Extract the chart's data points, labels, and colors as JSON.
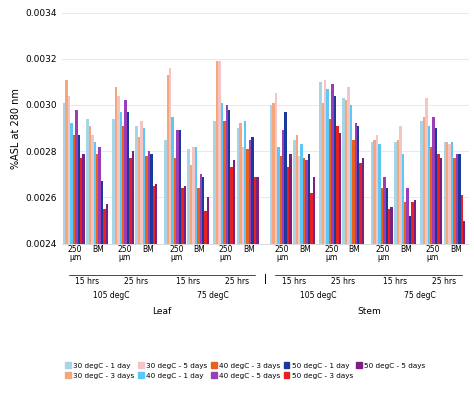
{
  "ylabel": "%ASL at 280 nm",
  "ylim": [
    0.0024,
    0.0034
  ],
  "yticks": [
    0.0024,
    0.0026,
    0.0028,
    0.003,
    0.0032,
    0.0034
  ],
  "series_labels": [
    "30 degC - 1 day",
    "30 degC - 3 days",
    "30 degC - 5 days",
    "40 degC - 1 day",
    "40 degC - 3 days",
    "40 degC - 5 days",
    "50 degC - 1 day",
    "50 degC - 3 days",
    "50 degC - 5 days"
  ],
  "series_colors": [
    "#a8d4e8",
    "#f5a67a",
    "#f5c4c4",
    "#5bc8f5",
    "#e8601a",
    "#9b3db8",
    "#1a3a9b",
    "#e82020",
    "#7b2080"
  ],
  "group_labels": [
    "250\nμm",
    "BM",
    "250\nμm",
    "BM",
    "250\nμm",
    "BM",
    "250\nμm",
    "BM",
    "250\nμm",
    "BM",
    "250\nμm",
    "BM",
    "250\nμm",
    "BM",
    "250\nμm",
    "BM"
  ],
  "hrs_labels": [
    "15 hrs",
    "25 hrs",
    "15 hrs",
    "25 hrs",
    "15 hrs",
    "25 hrs",
    "15 hrs",
    "25 hrs"
  ],
  "temp_labels": [
    "105 degC",
    "75 degC",
    "105 degC",
    "75 degC"
  ],
  "tissue_labels": [
    "Leaf",
    "Stem"
  ],
  "background_color": "#ffffff",
  "values": [
    [
      0.00301,
      0.00294,
      0.00294,
      0.00291,
      0.00285,
      0.00281,
      0.00293,
      0.0029,
      0.003,
      0.00285,
      0.0031,
      0.00303,
      0.00284,
      0.00284,
      0.00293,
      0.00284
    ],
    [
      0.00311,
      0.00291,
      0.00308,
      0.00286,
      0.00313,
      0.00274,
      0.00319,
      0.00292,
      0.00301,
      0.00287,
      0.00301,
      0.00302,
      0.00285,
      0.00285,
      0.00295,
      0.00284
    ],
    [
      0.00304,
      0.00287,
      0.00304,
      0.00293,
      0.00316,
      0.00282,
      0.00319,
      0.00282,
      0.00305,
      0.00278,
      0.00311,
      0.00308,
      0.00287,
      0.00291,
      0.00303,
      0.00283
    ],
    [
      0.00292,
      0.00284,
      0.00297,
      0.0029,
      0.00295,
      0.00282,
      0.00301,
      0.00293,
      0.00282,
      0.00283,
      0.00307,
      0.003,
      0.00283,
      0.00279,
      0.00291,
      0.00284
    ],
    [
      0.00287,
      0.00279,
      0.00291,
      0.00278,
      0.00277,
      0.00264,
      0.00293,
      0.00281,
      0.00278,
      0.00277,
      0.00294,
      0.00285,
      0.00264,
      0.00258,
      0.00282,
      0.00277
    ],
    [
      0.00298,
      0.00282,
      0.00302,
      0.0028,
      0.00289,
      0.0027,
      0.003,
      0.00285,
      0.00289,
      0.00276,
      0.00309,
      0.00292,
      0.00269,
      0.00264,
      0.00295,
      0.00279
    ],
    [
      0.00287,
      0.00267,
      0.00297,
      0.00279,
      0.00289,
      0.00269,
      0.00298,
      0.00286,
      0.00297,
      0.00279,
      0.00304,
      0.00291,
      0.00264,
      0.00252,
      0.0029,
      0.00279
    ],
    [
      0.00277,
      0.00255,
      0.00277,
      0.00265,
      0.00264,
      0.00254,
      0.00273,
      0.00269,
      0.00273,
      0.00262,
      0.00291,
      0.00275,
      0.00255,
      0.00258,
      0.00279,
      0.00261
    ],
    [
      0.00279,
      0.00257,
      0.0028,
      0.00266,
      0.00265,
      0.0026,
      0.00276,
      0.00269,
      0.00279,
      0.00269,
      0.00288,
      0.00277,
      0.00256,
      0.00259,
      0.00277,
      0.0025
    ]
  ]
}
